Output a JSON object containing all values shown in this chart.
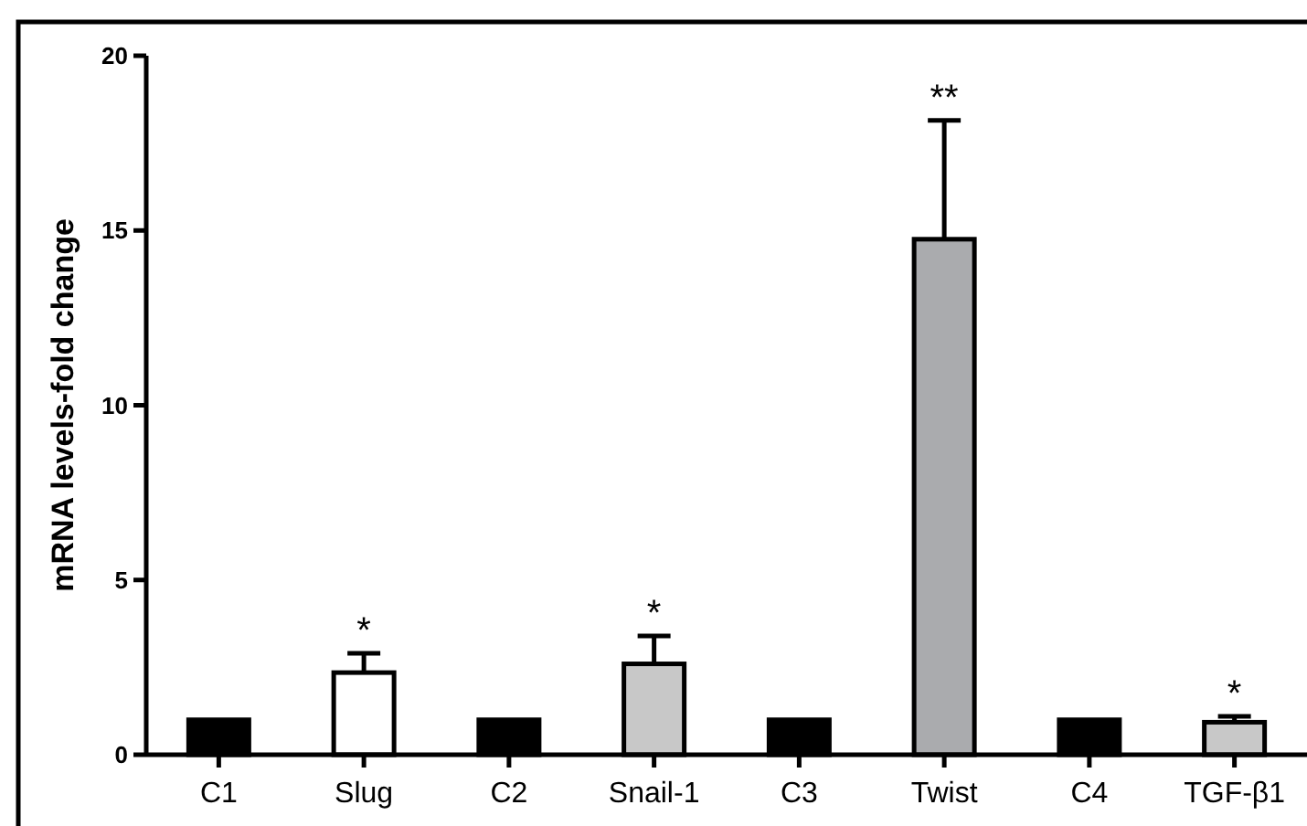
{
  "chart_data": {
    "type": "bar",
    "ylabel": "mRNA levels-fold change",
    "categories": [
      "C1",
      "Slug",
      "C2",
      "Snail-1",
      "C3",
      "Twist",
      "C4",
      "TGF-β1"
    ],
    "values": [
      1,
      2.35,
      1,
      2.6,
      1,
      14.75,
      1,
      0.93
    ],
    "errors": [
      null,
      0.55,
      null,
      0.8,
      null,
      3.4,
      null,
      0.17
    ],
    "colors": [
      "#000000",
      "#ffffff",
      "#000000",
      "#c8c8c8",
      "#000000",
      "#aaabae",
      "#000000",
      "#c8c8c8"
    ],
    "ylim": [
      0,
      20
    ],
    "yticks": [
      0,
      5,
      10,
      15,
      20
    ],
    "grid": false,
    "annotations": [
      {
        "text": "*",
        "x": "Slug",
        "y": 2.9
      },
      {
        "text": "*",
        "x": "Snail-1",
        "y": 3.4
      },
      {
        "text": "**",
        "x": "Twist",
        "y": 18.15
      },
      {
        "text": "*",
        "x": "TGF-β1",
        "y": 1.1
      }
    ]
  }
}
